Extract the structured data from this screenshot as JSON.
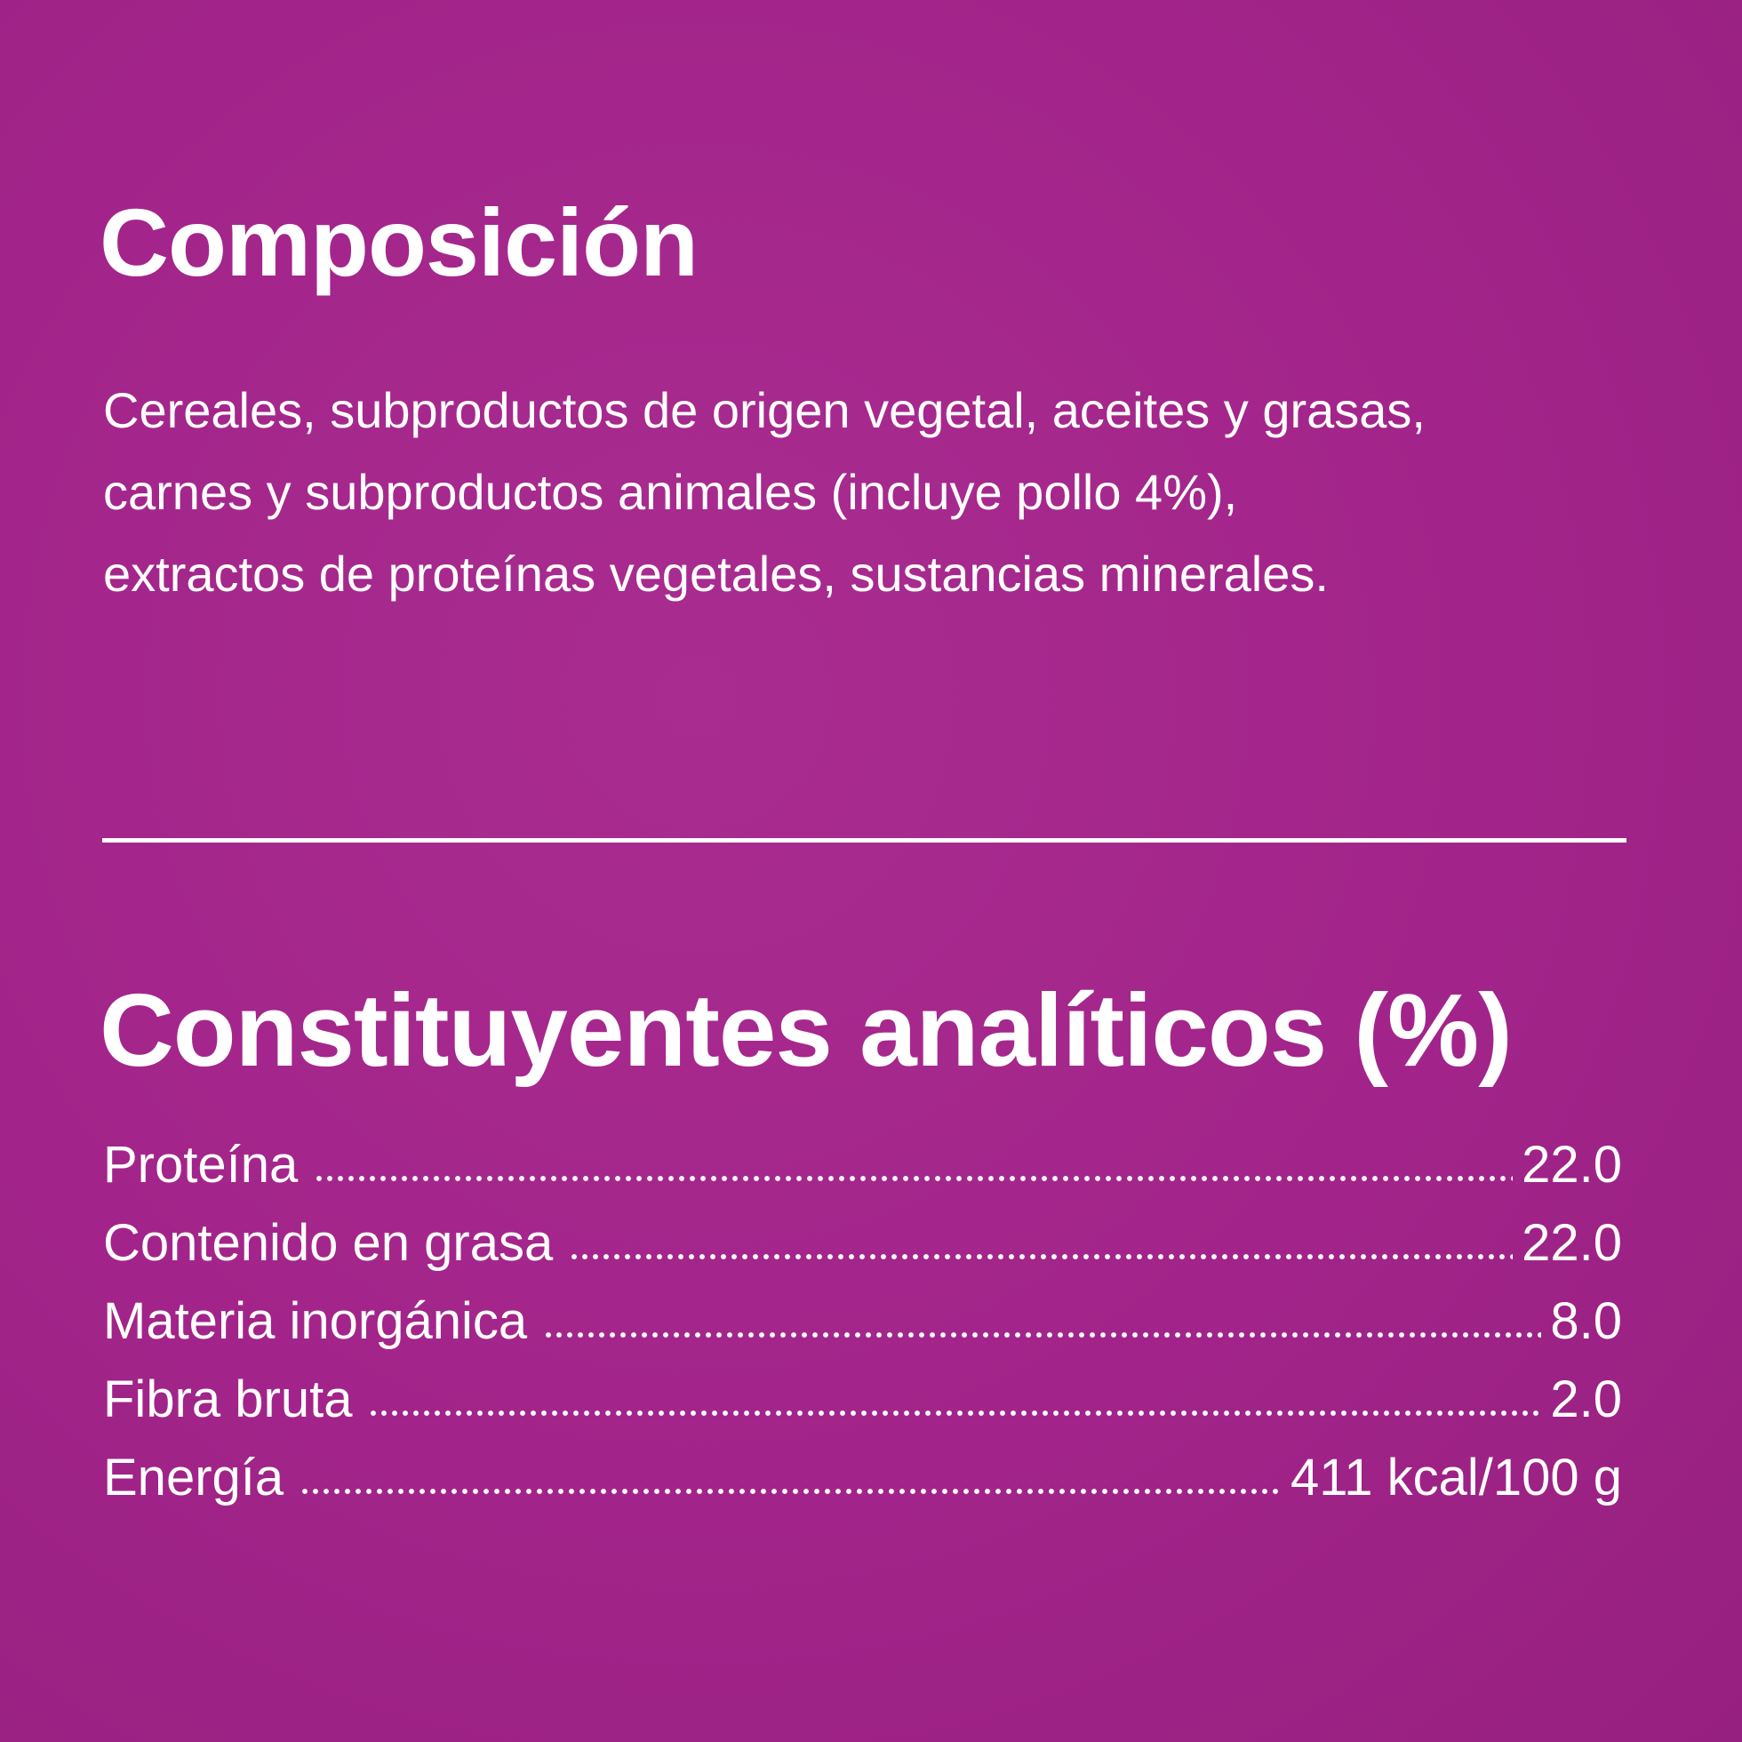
{
  "composition": {
    "title": "Composición",
    "lines": [
      "Cereales, subproductos de origen vegetal, aceites y grasas,",
      "carnes y subproductos animales (incluye pollo 4%),",
      "extractos de proteínas vegetales, sustancias minerales."
    ]
  },
  "analytical": {
    "title": "Constituyentes analíticos (%)",
    "rows": [
      {
        "label": "Proteína",
        "value": "22.0"
      },
      {
        "label": "Contenido en grasa",
        "value": "22.0"
      },
      {
        "label": "Materia inorgánica",
        "value": "8.0"
      },
      {
        "label": "Fibra bruta",
        "value": "2.0"
      },
      {
        "label": "Energía",
        "value": "411 kcal/100 g"
      }
    ]
  }
}
